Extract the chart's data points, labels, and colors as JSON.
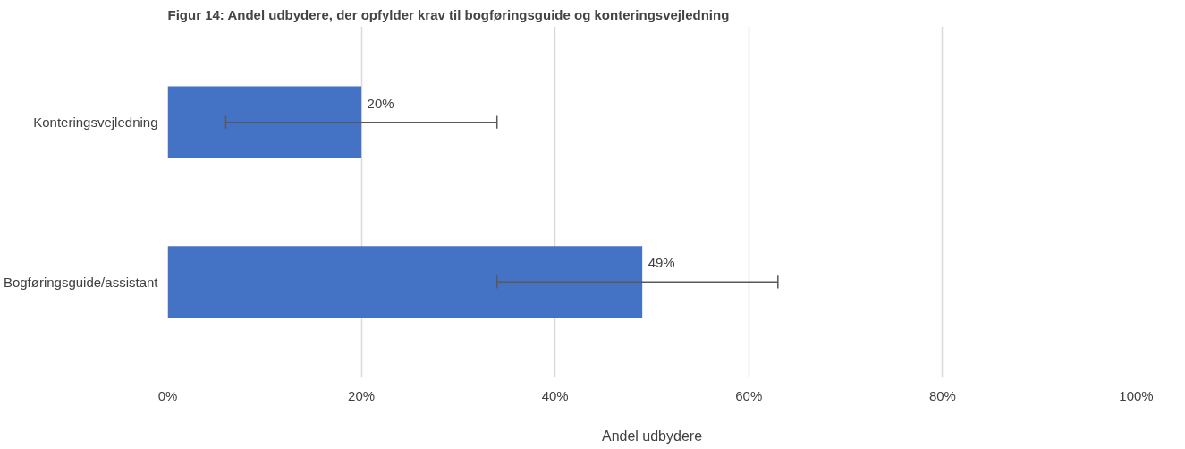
{
  "chart_data": {
    "type": "bar",
    "orientation": "horizontal",
    "title": "Figur 14: Andel udbydere, der opfylder krav til bogføringsguide og konteringsvejledning",
    "xlabel": "Andel udbydere",
    "categories": [
      "Konteringsvejledning",
      "Bogføringsguide/assistant"
    ],
    "values": [
      20,
      49
    ],
    "color": "#4472c4",
    "errors": [
      [
        6,
        34
      ],
      [
        34,
        63
      ]
    ],
    "value_labels": [
      "20%",
      "49%"
    ],
    "xlim": [
      0,
      100
    ],
    "xticks": [
      {
        "value": 0,
        "label": "0%"
      },
      {
        "value": 20,
        "label": "20%"
      },
      {
        "value": 40,
        "label": "40%"
      },
      {
        "value": 60,
        "label": "60%"
      },
      {
        "value": 80,
        "label": "80%"
      },
      {
        "value": 100,
        "label": "100%"
      }
    ],
    "grid": "x"
  }
}
